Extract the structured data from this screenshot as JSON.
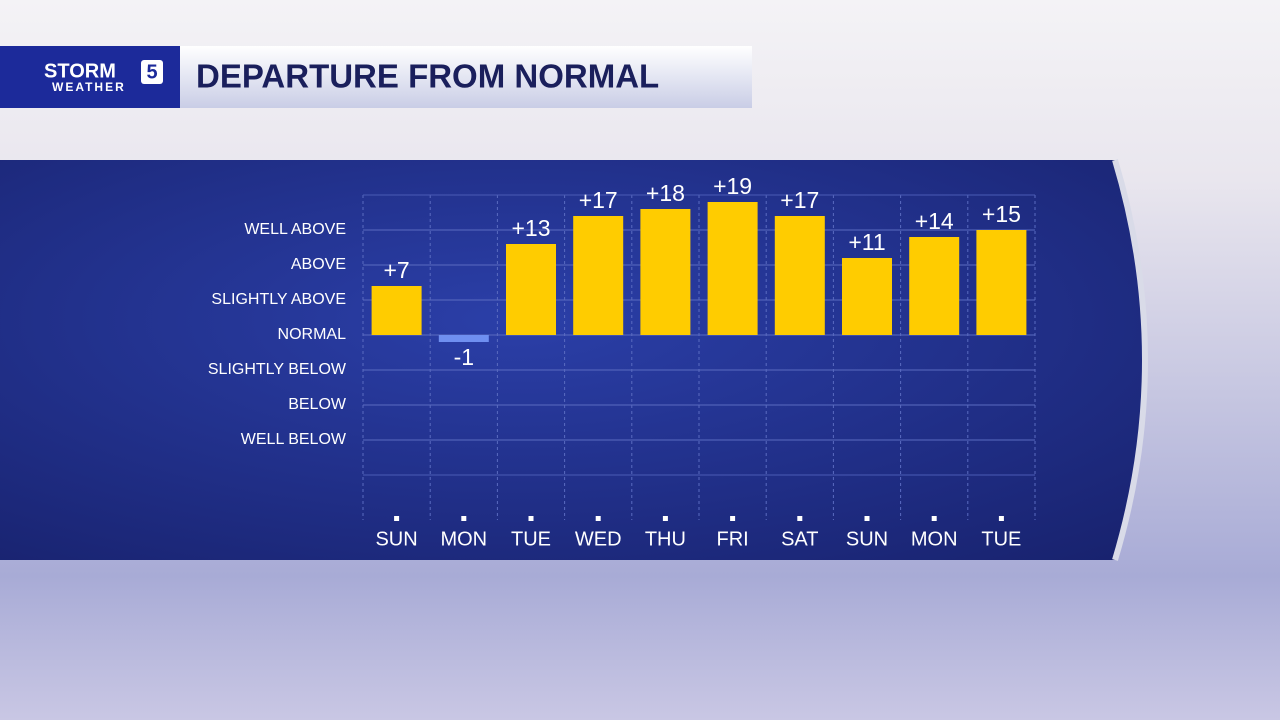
{
  "logo": {
    "brand": "STORM",
    "number": "5",
    "sub": "WEATHER"
  },
  "chart_data": {
    "type": "bar",
    "title": "DEPARTURE FROM NORMAL",
    "categories": [
      "SUN",
      "MON",
      "TUE",
      "WED",
      "THU",
      "FRI",
      "SAT",
      "SUN",
      "MON",
      "TUE"
    ],
    "values": [
      7,
      -1,
      13,
      17,
      18,
      19,
      17,
      11,
      14,
      15
    ],
    "value_labels": [
      "+7",
      "-1",
      "+13",
      "+17",
      "+18",
      "+19",
      "+17",
      "+11",
      "+14",
      "+15"
    ],
    "color": "#ffcc00",
    "negative_color": "#6f8ff0",
    "ylim": [
      -20,
      20
    ],
    "yticks": [
      {
        "value": 15,
        "label": "WELL ABOVE"
      },
      {
        "value": 10,
        "label": "ABOVE"
      },
      {
        "value": 5,
        "label": "SLIGHTLY ABOVE"
      },
      {
        "value": 0,
        "label": "NORMAL"
      },
      {
        "value": -5,
        "label": "SLIGHTLY BELOW"
      },
      {
        "value": -10,
        "label": "BELOW"
      },
      {
        "value": -15,
        "label": "WELL BELOW"
      }
    ],
    "grid": true
  }
}
